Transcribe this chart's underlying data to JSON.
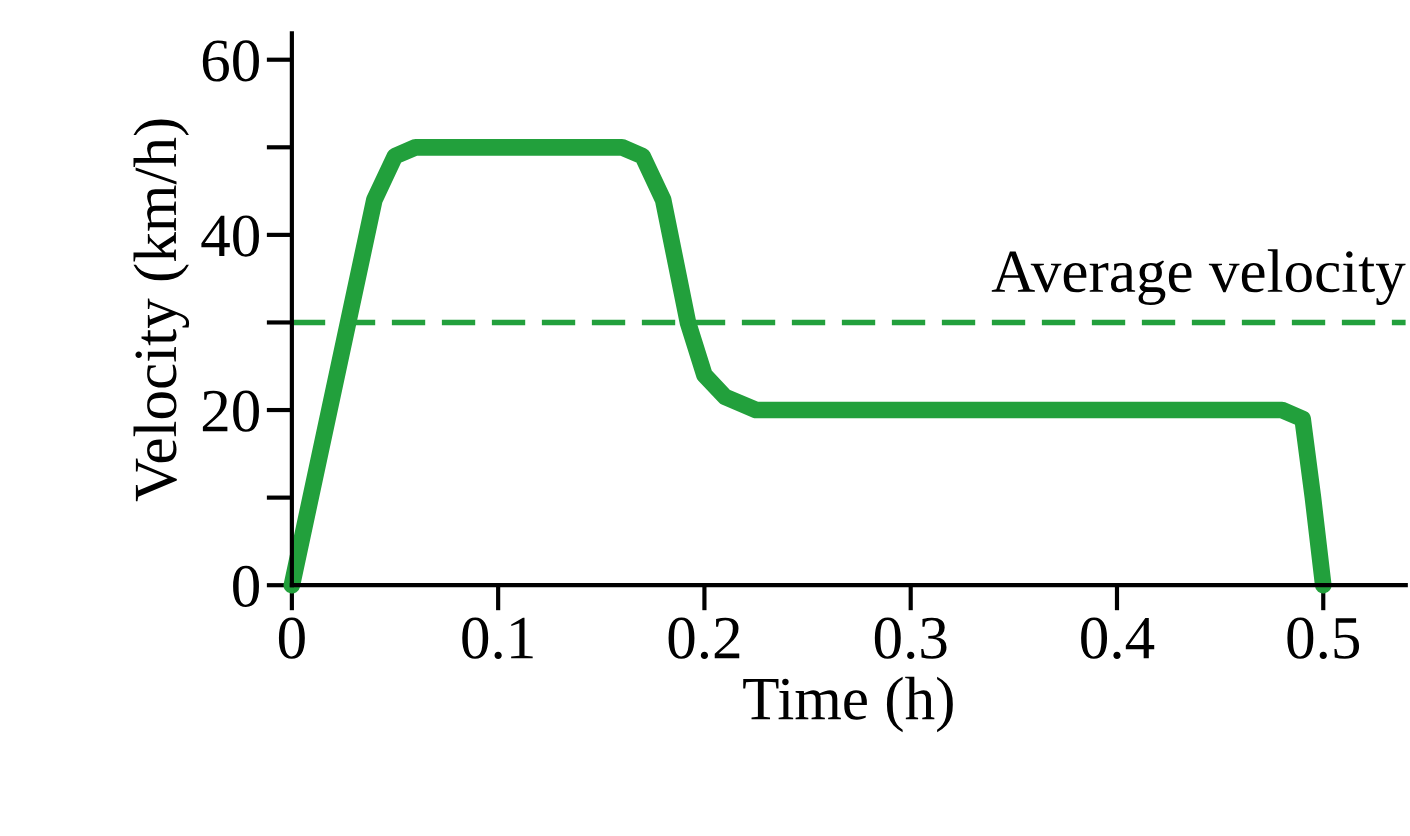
{
  "chart_data": {
    "type": "line",
    "xlabel": "Time (h)",
    "ylabel": "Velocity (km/h)",
    "x": [
      0,
      0.04,
      0.05,
      0.06,
      0.16,
      0.17,
      0.18,
      0.192,
      0.2,
      0.21,
      0.225,
      0.48,
      0.49,
      0.495,
      0.5
    ],
    "series": [
      {
        "color": "#22a03c",
        "values": [
          0,
          44,
          49,
          50,
          50,
          49,
          44,
          30,
          24,
          21.5,
          20,
          20,
          19,
          10,
          0
        ]
      }
    ],
    "xlim": [
      0,
      0.54
    ],
    "ylim": [
      0,
      63
    ],
    "xticks": [
      0,
      0.1,
      0.2,
      0.3,
      0.4,
      0.5
    ],
    "yticks": [
      0,
      {
        "value": 10,
        "label": null
      },
      20,
      {
        "value": 30,
        "label": null
      },
      40,
      {
        "value": 50,
        "label": null
      },
      60
    ],
    "ref_lines": [
      {
        "axis": "y",
        "value": 30,
        "label": "Average velocity",
        "color": "#22a03c",
        "line_style": "dashed"
      }
    ],
    "grid": false,
    "legend": false,
    "marker": "none",
    "line_style": "solid"
  }
}
